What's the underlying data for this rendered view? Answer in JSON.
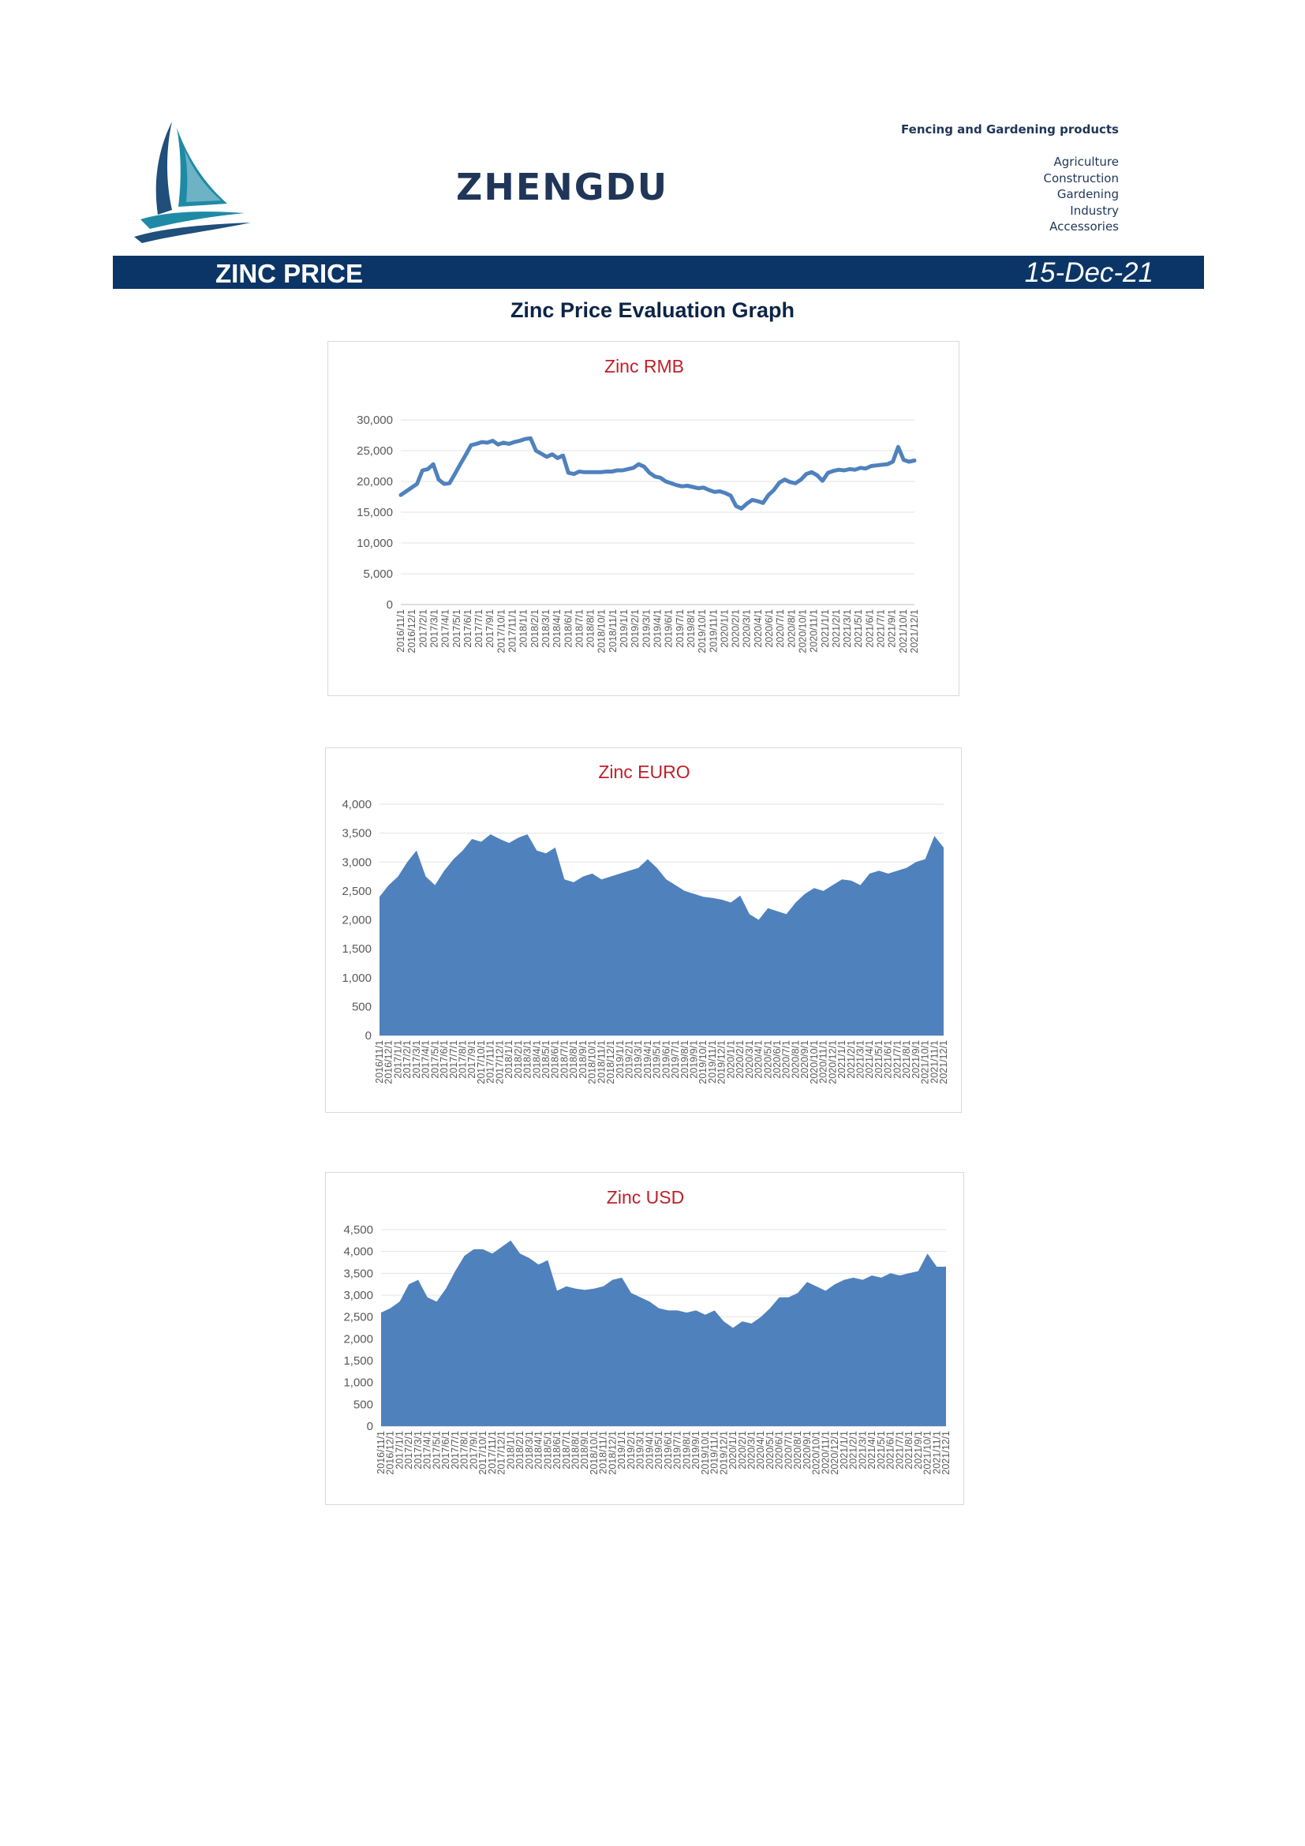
{
  "header": {
    "brand": "ZHENGDU",
    "tagline": "Fencing and Gardening products",
    "categories": [
      "Agriculture",
      "Construction",
      "Gardening",
      "Industry",
      "Accessories"
    ]
  },
  "banner": {
    "title": "ZINC PRICE",
    "date": "15-Dec-21"
  },
  "page_heading": "Zinc Price Evaluation Graph",
  "colors": {
    "banner": "#0b3566",
    "series": "#4f81bd",
    "chart_title": "#c0202a"
  },
  "chart_data": [
    {
      "type": "line",
      "title": "Zinc RMB",
      "ylim": [
        0,
        30000
      ],
      "yticks": [
        0,
        5000,
        10000,
        15000,
        20000,
        25000,
        30000
      ],
      "y_tick_labels": [
        "0",
        "5,000",
        "10,000",
        "15,000",
        "20,000",
        "25,000",
        "30,000"
      ],
      "x_tick_labels": [
        "2016/11/1",
        "2016/12/1",
        "2017/2/1",
        "2017/3/1",
        "2017/4/1",
        "2017/5/1",
        "2017/6/1",
        "2017/7/1",
        "2017/9/1",
        "2017/10/1",
        "2017/11/1",
        "2018/1/1",
        "2018/2/1",
        "2018/3/1",
        "2018/4/1",
        "2018/6/1",
        "2018/7/1",
        "2018/8/1",
        "2018/10/1",
        "2018/11/1",
        "2019/1/1",
        "2019/2/1",
        "2019/3/1",
        "2019/4/1",
        "2019/6/1",
        "2019/7/1",
        "2019/8/1",
        "2019/10/1",
        "2019/11/1",
        "2020/1/1",
        "2020/2/1",
        "2020/3/1",
        "2020/4/1",
        "2020/6/1",
        "2020/7/1",
        "2020/8/1",
        "2020/10/1",
        "2020/11/1",
        "2021/1/1",
        "2021/2/1",
        "2021/3/1",
        "2021/5/1",
        "2021/6/1",
        "2021/7/1",
        "2021/9/1",
        "2021/10/1",
        "2021/12/1"
      ],
      "grid": true,
      "values": [
        17800,
        18400,
        19000,
        19600,
        21800,
        22000,
        22800,
        20300,
        19600,
        19700,
        21200,
        22800,
        24300,
        25900,
        26100,
        26400,
        26300,
        26600,
        26000,
        26300,
        26100,
        26400,
        26600,
        26900,
        27000,
        25000,
        24500,
        24000,
        24400,
        23800,
        24200,
        21400,
        21200,
        21600,
        21500,
        21500,
        21500,
        21500,
        21600,
        21600,
        21800,
        21800,
        22000,
        22200,
        22800,
        22400,
        21400,
        20800,
        20600,
        20000,
        19700,
        19400,
        19200,
        19300,
        19100,
        18900,
        19000,
        18600,
        18300,
        18400,
        18100,
        17700,
        16000,
        15600,
        16400,
        17000,
        16800,
        16500,
        17800,
        18600,
        19800,
        20300,
        19900,
        19700,
        20300,
        21200,
        21500,
        21000,
        20100,
        21400,
        21700,
        21900,
        21800,
        22000,
        21900,
        22200,
        22100,
        22500,
        22600,
        22700,
        22800,
        23200,
        25600,
        23500,
        23200,
        23400
      ]
    },
    {
      "type": "area",
      "title": "Zinc EURO",
      "ylim": [
        0,
        4000
      ],
      "yticks": [
        0,
        500,
        1000,
        1500,
        2000,
        2500,
        3000,
        3500,
        4000
      ],
      "y_tick_labels": [
        "0",
        "500",
        "1,000",
        "1,500",
        "2,000",
        "2,500",
        "3,000",
        "3,500",
        "4,000"
      ],
      "x_tick_labels": [
        "2016/11/1",
        "2016/12/1",
        "2017/1/1",
        "2017/2/1",
        "2017/3/1",
        "2017/4/1",
        "2017/5/1",
        "2017/6/1",
        "2017/7/1",
        "2017/8/1",
        "2017/9/1",
        "2017/10/1",
        "2017/11/1",
        "2017/12/1",
        "2018/1/1",
        "2018/2/1",
        "2018/3/1",
        "2018/4/1",
        "2018/5/1",
        "2018/6/1",
        "2018/7/1",
        "2018/8/1",
        "2018/9/1",
        "2018/10/1",
        "2018/11/1",
        "2018/12/1",
        "2019/1/1",
        "2019/2/1",
        "2019/3/1",
        "2019/4/1",
        "2019/5/1",
        "2019/6/1",
        "2019/7/1",
        "2019/8/1",
        "2019/9/1",
        "2019/10/1",
        "2019/11/1",
        "2019/12/1",
        "2020/1/1",
        "2020/2/1",
        "2020/3/1",
        "2020/4/1",
        "2020/5/1",
        "2020/6/1",
        "2020/7/1",
        "2020/8/1",
        "2020/9/1",
        "2020/10/1",
        "2020/11/1",
        "2020/12/1",
        "2021/1/1",
        "2021/2/1",
        "2021/3/1",
        "2021/4/1",
        "2021/5/1",
        "2021/6/1",
        "2021/7/1",
        "2021/8/1",
        "2021/9/1",
        "2021/10/1",
        "2021/11/1",
        "2021/12/1"
      ],
      "grid": true,
      "values": [
        2400,
        2600,
        2750,
        3000,
        3200,
        2750,
        2600,
        2850,
        3050,
        3200,
        3400,
        3350,
        3480,
        3400,
        3330,
        3420,
        3480,
        3200,
        3150,
        3250,
        2700,
        2650,
        2750,
        2800,
        2700,
        2750,
        2800,
        2850,
        2900,
        3050,
        2900,
        2700,
        2600,
        2500,
        2450,
        2400,
        2380,
        2350,
        2300,
        2420,
        2100,
        2000,
        2200,
        2150,
        2100,
        2300,
        2450,
        2550,
        2500,
        2600,
        2700,
        2680,
        2600,
        2800,
        2850,
        2800,
        2850,
        2900,
        3000,
        3050,
        3450,
        3250
      ]
    },
    {
      "type": "area",
      "title": "Zinc USD",
      "ylim": [
        0,
        4500
      ],
      "yticks": [
        0,
        500,
        1000,
        1500,
        2000,
        2500,
        3000,
        3500,
        4000,
        4500
      ],
      "y_tick_labels": [
        "0",
        "500",
        "1,000",
        "1,500",
        "2,000",
        "2,500",
        "3,000",
        "3,500",
        "4,000",
        "4,500"
      ],
      "x_tick_labels": [
        "2016/11/1",
        "2016/12/1",
        "2017/1/1",
        "2017/2/1",
        "2017/3/1",
        "2017/4/1",
        "2017/5/1",
        "2017/6/1",
        "2017/7/1",
        "2017/8/1",
        "2017/9/1",
        "2017/10/1",
        "2017/11/1",
        "2017/12/1",
        "2018/1/1",
        "2018/2/1",
        "2018/3/1",
        "2018/4/1",
        "2018/5/1",
        "2018/6/1",
        "2018/7/1",
        "2018/8/1",
        "2018/9/1",
        "2018/10/1",
        "2018/11/1",
        "2018/12/1",
        "2019/1/1",
        "2019/2/1",
        "2019/3/1",
        "2019/4/1",
        "2019/5/1",
        "2019/6/1",
        "2019/7/1",
        "2019/8/1",
        "2019/9/1",
        "2019/10/1",
        "2019/11/1",
        "2019/12/1",
        "2020/1/1",
        "2020/2/1",
        "2020/3/1",
        "2020/4/1",
        "2020/5/1",
        "2020/6/1",
        "2020/7/1",
        "2020/8/1",
        "2020/9/1",
        "2020/10/1",
        "2020/11/1",
        "2020/12/1",
        "2021/1/1",
        "2021/2/1",
        "2021/3/1",
        "2021/4/1",
        "2021/5/1",
        "2021/6/1",
        "2021/7/1",
        "2021/8/1",
        "2021/9/1",
        "2021/10/1",
        "2021/11/1",
        "2021/12/1"
      ],
      "grid": true,
      "values": [
        2600,
        2700,
        2850,
        3250,
        3350,
        2950,
        2850,
        3150,
        3550,
        3900,
        4050,
        4050,
        3950,
        4100,
        4250,
        3950,
        3850,
        3700,
        3800,
        3100,
        3200,
        3150,
        3120,
        3150,
        3200,
        3350,
        3400,
        3050,
        2950,
        2850,
        2700,
        2650,
        2650,
        2600,
        2650,
        2550,
        2650,
        2400,
        2250,
        2400,
        2350,
        2500,
        2700,
        2950,
        2950,
        3050,
        3300,
        3200,
        3100,
        3250,
        3350,
        3400,
        3350,
        3450,
        3400,
        3500,
        3450,
        3500,
        3550,
        3950,
        3650,
        3650
      ]
    }
  ]
}
